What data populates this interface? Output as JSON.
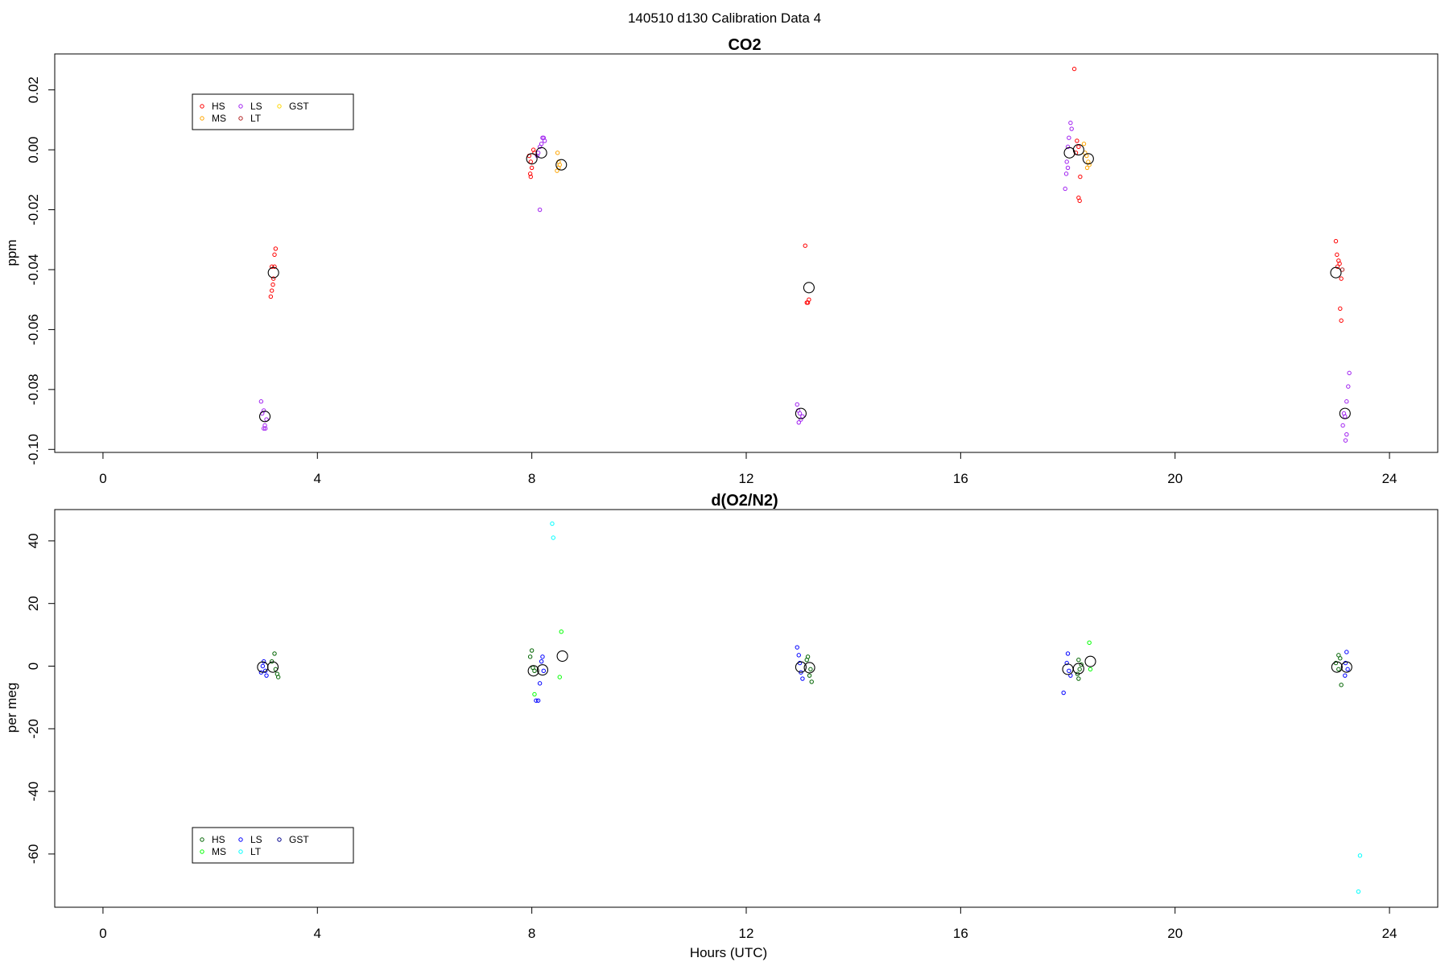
{
  "figure_title": "140510   d130   Calibration Data 4",
  "xlabel": "Hours (UTC)",
  "chart_data": [
    {
      "type": "scatter",
      "title": "CO2",
      "xlabel": "",
      "ylabel": "ppm",
      "xlim": [
        -0.9,
        24.9
      ],
      "ylim": [
        -0.101,
        0.032
      ],
      "xticks": [
        0,
        4,
        8,
        12,
        16,
        20,
        24
      ],
      "yticks": [
        -0.1,
        -0.08,
        -0.06,
        -0.04,
        -0.02,
        0.0,
        0.02
      ],
      "ytick_labels": [
        "-0.10",
        "-0.08",
        "-0.06",
        "-0.04",
        "-0.02",
        "0.00",
        "0.02"
      ],
      "grid": false,
      "legend_placement": "top-left",
      "legend": [
        {
          "name": "HS",
          "color": "#ff0000"
        },
        {
          "name": "LS",
          "color": "#a020f0"
        },
        {
          "name": "GST",
          "color": "#ffd700"
        },
        {
          "name": "MS",
          "color": "#ffa500"
        },
        {
          "name": "LT",
          "color": "#b22222"
        }
      ],
      "series": [
        {
          "name": "HS",
          "color": "#ff0000",
          "points": [
            [
              3.22,
              -0.033
            ],
            [
              3.2,
              -0.035
            ],
            [
              3.15,
              -0.039
            ],
            [
              3.2,
              -0.039
            ],
            [
              3.18,
              -0.043
            ],
            [
              3.17,
              -0.045
            ],
            [
              3.15,
              -0.047
            ],
            [
              3.13,
              -0.049
            ],
            [
              7.95,
              -0.002
            ],
            [
              7.98,
              -0.004
            ],
            [
              8.0,
              -0.006
            ],
            [
              7.97,
              -0.008
            ],
            [
              7.98,
              -0.009
            ],
            [
              8.05,
              -0.001
            ],
            [
              8.03,
              0.0
            ],
            [
              13.1,
              -0.032
            ],
            [
              13.15,
              -0.051
            ],
            [
              13.17,
              -0.05
            ],
            [
              13.13,
              -0.051
            ],
            [
              18.12,
              0.027
            ],
            [
              18.17,
              0.003
            ],
            [
              18.2,
              0.001
            ],
            [
              18.15,
              -0.001
            ],
            [
              18.23,
              -0.009
            ],
            [
              18.2,
              -0.016
            ],
            [
              18.22,
              -0.017
            ],
            [
              23.0,
              -0.0305
            ],
            [
              23.02,
              -0.035
            ],
            [
              23.05,
              -0.037
            ],
            [
              23.07,
              -0.038
            ],
            [
              23.03,
              -0.039
            ],
            [
              23.1,
              -0.043
            ],
            [
              23.08,
              -0.053
            ],
            [
              23.1,
              -0.057
            ]
          ]
        },
        {
          "name": "LS",
          "color": "#a020f0",
          "points": [
            [
              2.95,
              -0.084
            ],
            [
              3.0,
              -0.087
            ],
            [
              2.97,
              -0.088
            ],
            [
              3.05,
              -0.09
            ],
            [
              3.02,
              -0.092
            ],
            [
              3.0,
              -0.093
            ],
            [
              3.03,
              -0.093
            ],
            [
              8.15,
              0.001
            ],
            [
              8.18,
              0.002
            ],
            [
              8.2,
              0.004
            ],
            [
              8.22,
              0.004
            ],
            [
              8.24,
              0.003
            ],
            [
              8.12,
              -0.001
            ],
            [
              8.1,
              -0.002
            ],
            [
              8.15,
              -0.02
            ],
            [
              12.95,
              -0.085
            ],
            [
              12.97,
              -0.087
            ],
            [
              13.0,
              -0.088
            ],
            [
              13.05,
              -0.089
            ],
            [
              13.02,
              -0.09
            ],
            [
              12.98,
              -0.091
            ],
            [
              18.05,
              0.009
            ],
            [
              18.07,
              0.007
            ],
            [
              18.02,
              0.004
            ],
            [
              18.0,
              0.001
            ],
            [
              17.98,
              -0.004
            ],
            [
              18.0,
              -0.006
            ],
            [
              17.97,
              -0.008
            ],
            [
              17.95,
              -0.013
            ],
            [
              23.25,
              -0.0745
            ],
            [
              23.23,
              -0.079
            ],
            [
              23.2,
              -0.084
            ],
            [
              23.15,
              -0.088
            ],
            [
              23.17,
              -0.089
            ],
            [
              23.13,
              -0.092
            ],
            [
              23.2,
              -0.095
            ],
            [
              23.18,
              -0.097
            ]
          ]
        },
        {
          "name": "MS",
          "color": "#ffa500",
          "points": [
            [
              8.48,
              -0.001
            ],
            [
              8.5,
              -0.004
            ],
            [
              8.52,
              -0.005
            ],
            [
              8.5,
              -0.006
            ],
            [
              8.47,
              -0.007
            ],
            [
              18.3,
              0.002
            ],
            [
              18.32,
              -0.001
            ],
            [
              18.35,
              -0.002
            ],
            [
              18.38,
              -0.004
            ],
            [
              18.4,
              -0.005
            ],
            [
              18.36,
              -0.006
            ]
          ]
        },
        {
          "name": "LT",
          "color": "#b22222",
          "points": [
            [
              23.12,
              -0.04
            ]
          ]
        }
      ],
      "means": [
        [
          3.18,
          -0.041
        ],
        [
          3.02,
          -0.089
        ],
        [
          8.0,
          -0.003
        ],
        [
          8.18,
          -0.001
        ],
        [
          8.55,
          -0.005
        ],
        [
          13.17,
          -0.046
        ],
        [
          13.02,
          -0.088
        ],
        [
          18.03,
          -0.001
        ],
        [
          18.2,
          0.0
        ],
        [
          18.38,
          -0.003
        ],
        [
          23.0,
          -0.041
        ],
        [
          23.17,
          -0.088
        ]
      ]
    },
    {
      "type": "scatter",
      "title": "d(O2/N2)",
      "xlabel": "Hours (UTC)",
      "ylabel": "per meg",
      "xlim": [
        -0.9,
        24.9
      ],
      "ylim": [
        -77,
        50
      ],
      "xticks": [
        0,
        4,
        8,
        12,
        16,
        20,
        24
      ],
      "yticks": [
        -60,
        -40,
        -20,
        0,
        20,
        40
      ],
      "ytick_labels": [
        "-60",
        "-40",
        "-20",
        "0",
        "20",
        "40"
      ],
      "grid": false,
      "legend_placement": "bottom-left",
      "legend": [
        {
          "name": "HS",
          "color": "#006400"
        },
        {
          "name": "LS",
          "color": "#0000ff"
        },
        {
          "name": "GST",
          "color": "#00008b"
        },
        {
          "name": "MS",
          "color": "#00ff00"
        },
        {
          "name": "LT",
          "color": "#00ffff"
        }
      ],
      "series": [
        {
          "name": "HS",
          "color": "#006400",
          "points": [
            [
              3.2,
              4.0
            ],
            [
              3.15,
              1.5
            ],
            [
              3.22,
              -1.0
            ],
            [
              3.25,
              -2.5
            ],
            [
              3.27,
              -3.5
            ],
            [
              8.0,
              5.0
            ],
            [
              7.97,
              3.0
            ],
            [
              8.02,
              -0.5
            ],
            [
              8.05,
              -1.5
            ],
            [
              13.15,
              3.0
            ],
            [
              13.13,
              2.0
            ],
            [
              13.2,
              -1.0
            ],
            [
              13.18,
              -3.0
            ],
            [
              13.22,
              -5.0
            ],
            [
              18.2,
              2.0
            ],
            [
              18.25,
              0.5
            ],
            [
              18.22,
              -1.0
            ],
            [
              18.18,
              -2.5
            ],
            [
              18.2,
              -4.0
            ],
            [
              23.05,
              3.5
            ],
            [
              23.08,
              2.5
            ],
            [
              23.0,
              1.0
            ],
            [
              23.05,
              -1.0
            ],
            [
              23.1,
              -6.0
            ]
          ]
        },
        {
          "name": "MS",
          "color": "#00ff00",
          "points": [
            [
              8.55,
              11.0
            ],
            [
              8.52,
              -3.5
            ],
            [
              8.05,
              -9.0
            ],
            [
              18.4,
              7.5
            ],
            [
              18.42,
              -1.0
            ]
          ]
        },
        {
          "name": "LS",
          "color": "#0000ff",
          "points": [
            [
              3.0,
              1.5
            ],
            [
              2.98,
              0.0
            ],
            [
              3.03,
              -1.5
            ],
            [
              2.95,
              -2.0
            ],
            [
              3.05,
              -3.0
            ],
            [
              8.2,
              3.0
            ],
            [
              8.18,
              1.5
            ],
            [
              8.22,
              -1.5
            ],
            [
              8.15,
              -5.5
            ],
            [
              8.08,
              -11.0
            ],
            [
              8.12,
              -11.0
            ],
            [
              12.95,
              6.0
            ],
            [
              12.98,
              3.5
            ],
            [
              13.0,
              1.0
            ],
            [
              13.02,
              -2.0
            ],
            [
              13.05,
              -4.0
            ],
            [
              18.0,
              4.0
            ],
            [
              17.98,
              1.0
            ],
            [
              18.02,
              -1.5
            ],
            [
              18.05,
              -3.0
            ],
            [
              17.92,
              -8.5
            ],
            [
              23.2,
              4.5
            ],
            [
              23.18,
              1.0
            ],
            [
              23.22,
              -1.0
            ],
            [
              23.17,
              -3.0
            ]
          ]
        },
        {
          "name": "LT",
          "color": "#00ffff",
          "points": [
            [
              8.38,
              45.5
            ],
            [
              8.4,
              41.0
            ],
            [
              23.45,
              -60.5
            ],
            [
              23.42,
              -72.0
            ]
          ]
        }
      ],
      "means": [
        [
          2.98,
          -0.3
        ],
        [
          3.17,
          -0.3
        ],
        [
          8.03,
          -1.5
        ],
        [
          8.2,
          -1.2
        ],
        [
          8.57,
          3.2
        ],
        [
          13.02,
          -0.3
        ],
        [
          13.18,
          -0.5
        ],
        [
          18.0,
          -1.0
        ],
        [
          18.2,
          -0.8
        ],
        [
          18.42,
          1.5
        ],
        [
          23.02,
          -0.3
        ],
        [
          23.2,
          -0.3
        ]
      ]
    }
  ]
}
